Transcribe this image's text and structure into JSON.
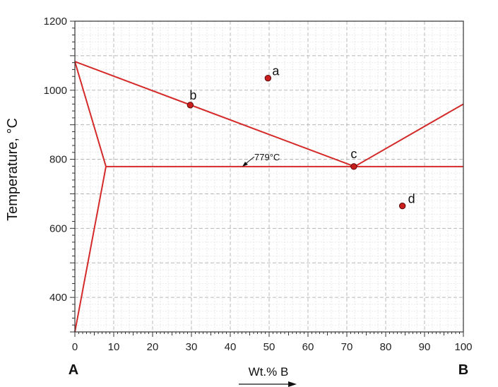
{
  "chart_data": {
    "type": "line",
    "title": "",
    "xlabel": "Wt.% B",
    "ylabel": "Temperature, °C",
    "xlim": [
      0,
      100
    ],
    "ylim": [
      300,
      1200
    ],
    "x_ticks": [
      0,
      10,
      20,
      30,
      40,
      50,
      60,
      70,
      80,
      90,
      100
    ],
    "y_ticks": [
      400,
      600,
      800,
      1000,
      1200
    ],
    "x_tick_labels": [
      "0",
      "10",
      "20",
      "30",
      "40",
      "50",
      "60",
      "70",
      "80",
      "90",
      "100"
    ],
    "y_tick_labels": [
      "400",
      "600",
      "800",
      "1000",
      "1200"
    ],
    "grid": true,
    "component_left": "A",
    "component_right": "B",
    "eutectic_label": "779°C",
    "series": [
      {
        "name": "liquidus-left",
        "x": [
          0,
          72
        ],
        "y": [
          1083,
          779
        ]
      },
      {
        "name": "liquidus-right",
        "x": [
          72,
          100
        ],
        "y": [
          779,
          960
        ]
      },
      {
        "name": "solidus-left",
        "x": [
          0,
          8
        ],
        "y": [
          1083,
          779
        ]
      },
      {
        "name": "solvus-left",
        "x": [
          8,
          0
        ],
        "y": [
          779,
          300
        ]
      },
      {
        "name": "eutectic-isotherm",
        "x": [
          8,
          100
        ],
        "y": [
          779,
          779
        ]
      }
    ],
    "points": [
      {
        "label": "a",
        "x": 49.7,
        "y": 1035
      },
      {
        "label": "b",
        "x": 29.7,
        "y": 957
      },
      {
        "label": "c",
        "x": 71.8,
        "y": 779
      },
      {
        "label": "d",
        "x": 84.3,
        "y": 665
      }
    ],
    "colors": {
      "line": "#d42a2a",
      "point": "#c81e1e",
      "grid": "#c4c4c4",
      "axis": "#333333"
    }
  }
}
